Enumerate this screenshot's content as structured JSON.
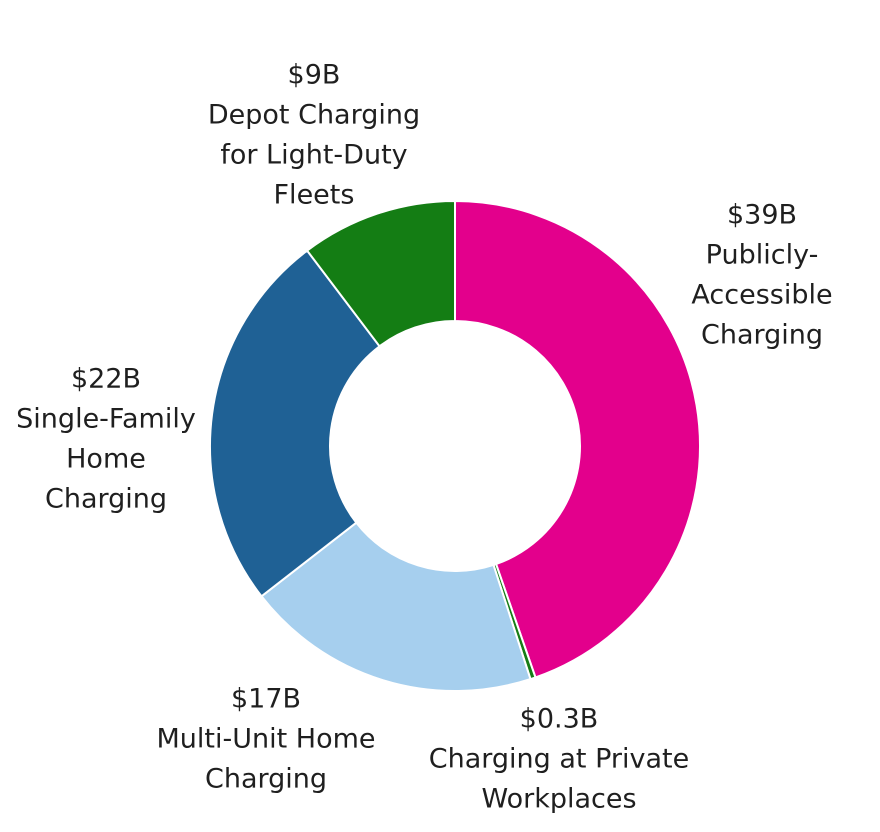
{
  "chart_data": {
    "type": "pie",
    "donut": true,
    "legend": "none",
    "slices": [
      {
        "name": "Publicly-Accessible Charging",
        "value": 39,
        "value_label": "$39B",
        "label_lines": [
          "Publicly-",
          "Accessible",
          "Charging"
        ],
        "color": "#e3008c"
      },
      {
        "name": "Charging at Private Workplaces",
        "value": 0.3,
        "value_label": "$0.3B",
        "label_lines": [
          "Charging at Private",
          "Workplaces"
        ],
        "color": "#167d16"
      },
      {
        "name": "Multi-Unit Home Charging",
        "value": 17,
        "value_label": "$17B",
        "label_lines": [
          "Multi-Unit Home",
          "Charging"
        ],
        "color": "#a6cfee"
      },
      {
        "name": "Single-Family Home Charging",
        "value": 22,
        "value_label": "$22B",
        "label_lines": [
          "Single-Family",
          "Home",
          "Charging"
        ],
        "color": "#1f6195"
      },
      {
        "name": "Depot Charging for Light-Duty Fleets",
        "value": 9,
        "value_label": "$9B",
        "label_lines": [
          "Depot Charging",
          "for Light-Duty",
          "Fleets"
        ],
        "color": "#147d14"
      }
    ]
  }
}
